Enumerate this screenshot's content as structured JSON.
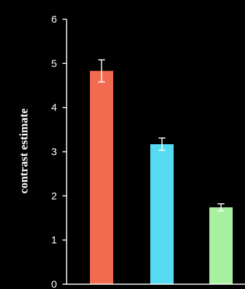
{
  "chart_data": {
    "type": "bar",
    "title": "",
    "xlabel": "",
    "ylabel": "contrast estimate",
    "ylim": [
      0,
      6
    ],
    "yticks": [
      "0",
      "1",
      "2",
      "3",
      "4",
      "5",
      "6"
    ],
    "grid": false,
    "categories": [
      "",
      "",
      ""
    ],
    "values": [
      4.83,
      3.17,
      1.74
    ],
    "errors": [
      0.25,
      0.14,
      0.08
    ],
    "colors": [
      "#f26b50",
      "#55daf2",
      "#a8f0a0"
    ],
    "axis_color": "#ffffff",
    "background": "#000000"
  }
}
